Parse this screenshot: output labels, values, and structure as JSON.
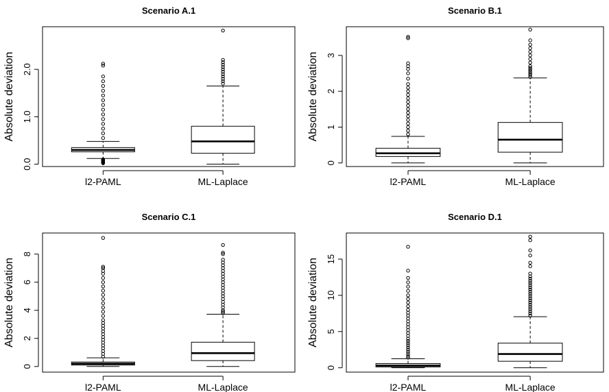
{
  "chart_data": [
    {
      "type": "box",
      "title": "Scenario A.1",
      "xlabel": "",
      "ylabel": "Absolute deviation",
      "ylim": [
        -0.05,
        2.9
      ],
      "yticks": [
        0.0,
        1.0,
        2.0
      ],
      "ytick_labels": [
        "0.0",
        "1.0",
        "2.0"
      ],
      "categories": [
        "l2-PAML",
        "ML-Laplace"
      ],
      "boxes": [
        {
          "name": "l2-PAML",
          "whisker_low": 0.12,
          "q1": 0.26,
          "median": 0.3,
          "q3": 0.35,
          "whisker_high": 0.48,
          "outliers": [
            0.02,
            0.03,
            0.04,
            0.05,
            0.06,
            0.07,
            0.08,
            0.09,
            0.1,
            0.55,
            0.65,
            0.75,
            0.85,
            0.95,
            1.05,
            1.15,
            1.25,
            1.35,
            1.45,
            1.55,
            1.65,
            1.75,
            1.85,
            2.08,
            2.12
          ]
        },
        {
          "name": "ML-Laplace",
          "whisker_low": 0.0,
          "q1": 0.23,
          "median": 0.48,
          "q3": 0.8,
          "whisker_high": 1.65,
          "outliers": [
            1.7,
            1.75,
            1.8,
            1.85,
            1.9,
            1.95,
            2.0,
            2.05,
            2.1,
            2.15,
            2.2,
            2.82
          ]
        }
      ]
    },
    {
      "type": "box",
      "title": "Scenario B.1",
      "xlabel": "",
      "ylabel": "Absolute deviation",
      "ylim": [
        -0.1,
        3.8
      ],
      "yticks": [
        0,
        1,
        2,
        3
      ],
      "ytick_labels": [
        "0",
        "1",
        "2",
        "3"
      ],
      "categories": [
        "l2-PAML",
        "ML-Laplace"
      ],
      "boxes": [
        {
          "name": "l2-PAML",
          "whisker_low": 0.0,
          "q1": 0.18,
          "median": 0.27,
          "q3": 0.41,
          "whisker_high": 0.74,
          "outliers": [
            0.8,
            0.9,
            1.0,
            1.1,
            1.2,
            1.3,
            1.4,
            1.5,
            1.6,
            1.7,
            1.8,
            1.9,
            2.0,
            2.1,
            2.2,
            2.35,
            2.5,
            2.62,
            2.7,
            2.78,
            3.48,
            3.52
          ]
        },
        {
          "name": "ML-Laplace",
          "whisker_low": 0.0,
          "q1": 0.3,
          "median": 0.65,
          "q3": 1.13,
          "whisker_high": 2.37,
          "outliers": [
            2.4,
            2.45,
            2.5,
            2.55,
            2.6,
            2.65,
            2.7,
            2.8,
            2.9,
            3.0,
            3.1,
            3.2,
            3.3,
            3.42,
            3.72
          ]
        }
      ]
    },
    {
      "type": "box",
      "title": "Scenario C.1",
      "xlabel": "",
      "ylabel": "Absolute deviation",
      "ylim": [
        -0.4,
        9.5
      ],
      "yticks": [
        0,
        2,
        4,
        6,
        8
      ],
      "ytick_labels": [
        "0",
        "2",
        "4",
        "6",
        "8"
      ],
      "categories": [
        "l2-PAML",
        "ML-Laplace"
      ],
      "boxes": [
        {
          "name": "l2-PAML",
          "whisker_low": 0.0,
          "q1": 0.1,
          "median": 0.2,
          "q3": 0.32,
          "whisker_high": 0.62,
          "outliers": [
            0.7,
            0.9,
            1.1,
            1.3,
            1.5,
            1.7,
            1.9,
            2.1,
            2.3,
            2.5,
            2.7,
            2.9,
            3.1,
            3.3,
            3.6,
            3.9,
            4.2,
            4.5,
            4.8,
            5.1,
            5.4,
            5.7,
            6.0,
            6.3,
            6.6,
            6.8,
            7.0,
            7.1,
            9.15
          ]
        },
        {
          "name": "ML-Laplace",
          "whisker_low": 0.0,
          "q1": 0.42,
          "median": 0.95,
          "q3": 1.73,
          "whisker_high": 3.72,
          "outliers": [
            3.8,
            3.9,
            4.0,
            4.2,
            4.4,
            4.6,
            4.8,
            5.0,
            5.2,
            5.4,
            5.6,
            5.8,
            6.0,
            6.2,
            6.4,
            6.6,
            6.8,
            7.0,
            7.2,
            7.4,
            7.6,
            8.0,
            8.1,
            8.65
          ]
        }
      ]
    },
    {
      "type": "box",
      "title": "Scenario D.1",
      "xlabel": "",
      "ylabel": "Absolute deviation",
      "ylim": [
        -0.6,
        18.6
      ],
      "yticks": [
        0,
        5,
        10,
        15
      ],
      "ytick_labels": [
        "0",
        "5",
        "10",
        "15"
      ],
      "categories": [
        "l2-PAML",
        "ML-Laplace"
      ],
      "boxes": [
        {
          "name": "l2-PAML",
          "whisker_low": 0.0,
          "q1": 0.12,
          "median": 0.3,
          "q3": 0.58,
          "whisker_high": 1.25,
          "outliers": [
            1.4,
            1.6,
            1.9,
            2.2,
            2.5,
            2.8,
            3.1,
            3.4,
            3.7,
            4.0,
            4.4,
            4.8,
            5.2,
            5.6,
            6.0,
            6.4,
            6.8,
            7.2,
            7.6,
            8.0,
            8.5,
            9.0,
            9.5,
            10.0,
            10.6,
            11.2,
            11.8,
            12.4,
            13.4,
            16.7
          ]
        },
        {
          "name": "ML-Laplace",
          "whisker_low": 0.0,
          "q1": 0.9,
          "median": 1.9,
          "q3": 3.4,
          "whisker_high": 7.05,
          "outliers": [
            7.2,
            7.5,
            7.8,
            8.1,
            8.4,
            8.7,
            9.0,
            9.3,
            9.6,
            9.9,
            10.2,
            10.5,
            10.8,
            11.1,
            11.4,
            11.7,
            12.0,
            12.3,
            12.6,
            13.0,
            14.0,
            14.5,
            15.5,
            16.2,
            17.6,
            18.1
          ]
        }
      ]
    }
  ]
}
